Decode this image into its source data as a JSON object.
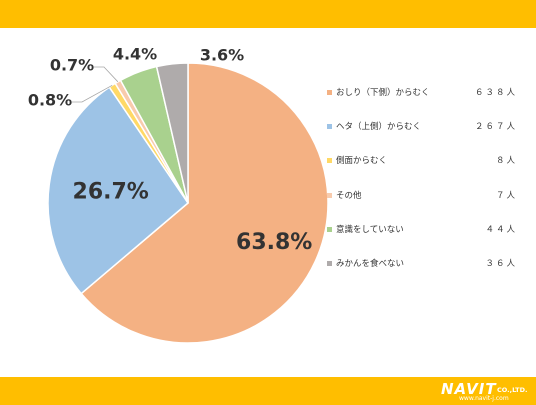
{
  "chart_data": {
    "type": "pie",
    "title": "",
    "start_angle_deg": 0,
    "direction": "clockwise",
    "slices": [
      {
        "label": "おしり（下側）からむく",
        "value": 63.8,
        "count": "６３８人",
        "percent_label": "63.8%",
        "color": "#F4B183"
      },
      {
        "label": "ヘタ（上側）からむく",
        "value": 26.7,
        "count": "２６７人",
        "percent_label": "26.7%",
        "color": "#9DC3E6"
      },
      {
        "label": "側面からむく",
        "value": 0.8,
        "count": "８人",
        "percent_label": "0.8%",
        "color": "#FFD966"
      },
      {
        "label": "その他",
        "value": 0.7,
        "count": "７人",
        "percent_label": "0.7%",
        "color": "#F8CBAD"
      },
      {
        "label": "意識をしていない",
        "value": 4.4,
        "count": "４４人",
        "percent_label": "4.4%",
        "color": "#A9D18E"
      },
      {
        "label": "みかんを食べない",
        "value": 3.6,
        "count": "３６人",
        "percent_label": "3.6%",
        "color": "#AFABAB"
      }
    ],
    "legend_position": "right"
  },
  "branding": {
    "band_color": "#FFBE00",
    "logo_name": "NAVIT",
    "logo_suffix": "CO.,LTD.",
    "logo_url": "www.navit-j.com"
  }
}
